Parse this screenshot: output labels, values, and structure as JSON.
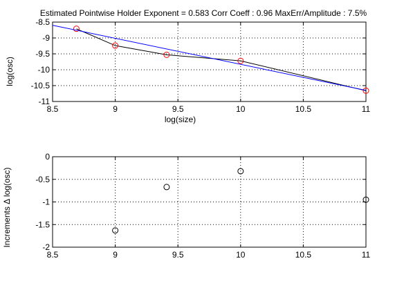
{
  "chart_data": [
    {
      "type": "line",
      "title": "Estimated Pointwise Holder Exponent = 0.583     Corr Coeff : 0.96     MaxErr/Amplitude : 7.5%",
      "xlabel": "log(size)",
      "ylabel": "log(osc)",
      "xlim": [
        8.5,
        11
      ],
      "ylim": [
        -11,
        -8.5
      ],
      "xticks": [
        "8.5",
        "9",
        "9.5",
        "10",
        "10.5",
        "11"
      ],
      "yticks": [
        "-8.5",
        "-9",
        "-9.5",
        "-10",
        "-10.5",
        "-11"
      ],
      "grid": true,
      "series": [
        {
          "type": "line+markers",
          "color": "#000000",
          "marker_color": "#ff0000",
          "marker": "circle",
          "x": [
            8.69,
            9.0,
            9.41,
            10.0,
            11.0
          ],
          "y": [
            -8.71,
            -9.24,
            -9.53,
            -9.72,
            -10.66
          ]
        },
        {
          "type": "fit-line",
          "color": "#0000ff",
          "x": [
            8.5,
            11.0
          ],
          "y": [
            -8.6,
            -10.65
          ]
        }
      ]
    },
    {
      "type": "scatter",
      "xlabel": "",
      "ylabel": "Increments Δ log(osc)",
      "xlim": [
        8.5,
        11
      ],
      "ylim": [
        -2,
        0
      ],
      "xticks": [
        "8.5",
        "9",
        "9.5",
        "10",
        "10.5",
        "11"
      ],
      "yticks": [
        "0",
        "-0.5",
        "-1",
        "-1.5",
        "-2"
      ],
      "grid": true,
      "series": [
        {
          "marker": "circle",
          "color": "#000000",
          "x": [
            9.0,
            9.41,
            10.0,
            11.0
          ],
          "y": [
            -1.63,
            -0.67,
            -0.32,
            -0.95
          ]
        }
      ]
    }
  ]
}
